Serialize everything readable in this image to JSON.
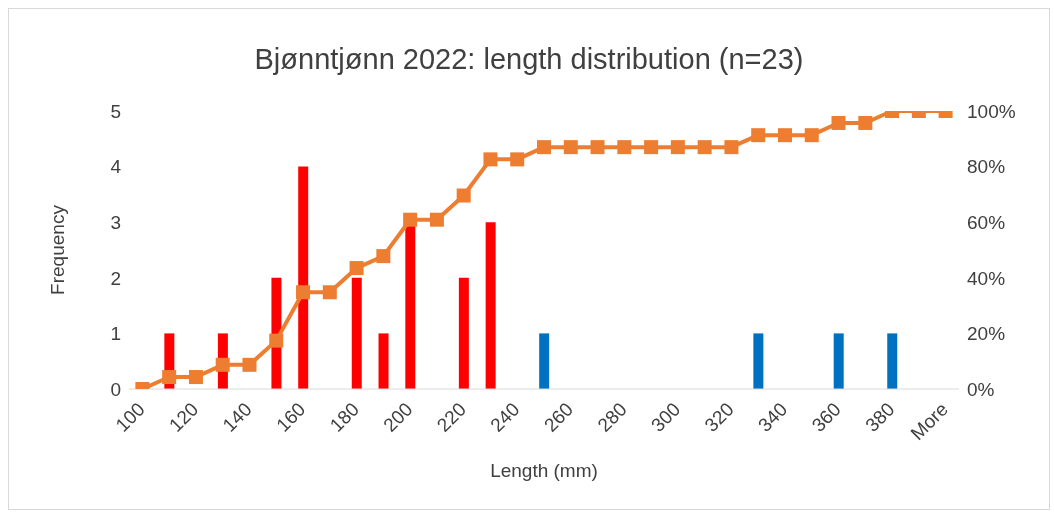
{
  "chart_data": {
    "type": "bar",
    "title": "Bjønntjønn 2022: length distribution (n=23)",
    "xlabel": "Length (mm)",
    "ylabel": "Frequency",
    "categories": [
      "100",
      null,
      "120",
      null,
      "140",
      null,
      "160",
      null,
      "180",
      null,
      "200",
      null,
      "220",
      null,
      "240",
      null,
      "260",
      null,
      "280",
      null,
      "300",
      null,
      "320",
      null,
      "340",
      null,
      "360",
      null,
      "380",
      null,
      "More"
    ],
    "series": [
      {
        "values": [
          0,
          1,
          0,
          1,
          0,
          2,
          4,
          0,
          2,
          1,
          3,
          0,
          2,
          3,
          0,
          1,
          0,
          0,
          0,
          0,
          0,
          0,
          0,
          1,
          0,
          0,
          1,
          0,
          1,
          0,
          0
        ],
        "colors": [
          "#ff0000",
          "#ff0000",
          "#ff0000",
          "#ff0000",
          "#ff0000",
          "#ff0000",
          "#ff0000",
          "#ff0000",
          "#ff0000",
          "#ff0000",
          "#ff0000",
          "#ff0000",
          "#ff0000",
          "#ff0000",
          "#ff0000",
          "#0070c0",
          "#0070c0",
          "#0070c0",
          "#0070c0",
          "#0070c0",
          "#0070c0",
          "#0070c0",
          "#0070c0",
          "#0070c0",
          "#0070c0",
          "#0070c0",
          "#0070c0",
          "#0070c0",
          "#0070c0",
          "#0070c0",
          "#0070c0"
        ]
      },
      {
        "type": "line",
        "axis": "y2",
        "color": "#ed7d31",
        "values": [
          0,
          4.3,
          4.3,
          8.7,
          8.7,
          17.4,
          34.8,
          34.8,
          43.5,
          47.8,
          60.9,
          60.9,
          69.6,
          82.6,
          82.6,
          87.0,
          87.0,
          87.0,
          87.0,
          87.0,
          87.0,
          87.0,
          87.0,
          91.3,
          91.3,
          91.3,
          95.7,
          95.7,
          100,
          100,
          100
        ]
      }
    ],
    "ylim": [
      0,
      5
    ],
    "yticks": [
      0,
      1,
      2,
      3,
      4,
      5
    ],
    "y2lim": [
      0,
      100
    ],
    "y2ticks": [
      {
        "value": 0,
        "label": "0%"
      },
      {
        "value": 20,
        "label": "20%"
      },
      {
        "value": 40,
        "label": "40%"
      },
      {
        "value": 60,
        "label": "60%"
      },
      {
        "value": 80,
        "label": "80%"
      },
      {
        "value": 100,
        "label": "100%"
      }
    ],
    "grid": false,
    "legend": false,
    "marker": "square",
    "line_style": "solid"
  }
}
